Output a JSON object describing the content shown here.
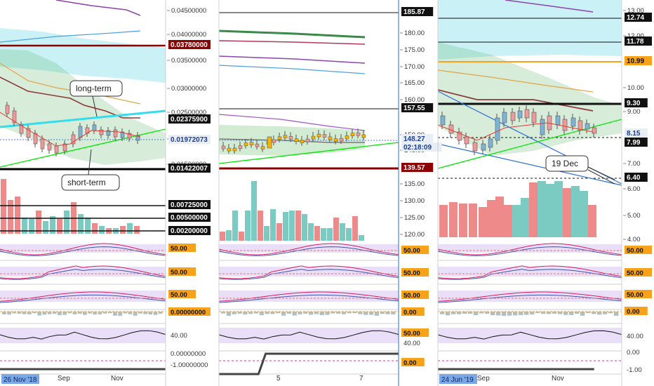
{
  "colors": {
    "cloud_green": "#4caf50",
    "cloud_cyan": "#26c6da",
    "price_up": "#7fb3d5",
    "price_down": "#ef9a9a",
    "trend_green": "#00e600",
    "trend_cyan": "#33ddee",
    "level_dark_red": "#8b0000",
    "level_black": "#000000",
    "tag_orange": "#f7a21b",
    "tag_date": "#7aa7e6",
    "vol_red": "#ef8a8a",
    "vol_teal": "#7ccbc2",
    "osc_band": "#e6d9f7"
  },
  "chart_data": [
    {
      "panel": "left",
      "type": "candlestick",
      "y_tick_labels": [
        "0.04500000",
        "0.04000000",
        "0.03500000",
        "0.03000000",
        "0.02500000",
        "0.02000000",
        "0.01500000"
      ],
      "level_tags": [
        {
          "label": "0.03780000",
          "style": "dark-red"
        },
        {
          "label": "0.02375900",
          "style": "black"
        },
        {
          "label": "0.01972073",
          "style": "price"
        },
        {
          "label": "0.01422007",
          "style": "black"
        },
        {
          "label": "0.00725000",
          "style": "black"
        },
        {
          "label": "0.00500000",
          "style": "black"
        },
        {
          "label": "0.00200000",
          "style": "black"
        }
      ],
      "osc_tags": [
        "50.00",
        "50.00",
        "50.00",
        "0.00000000",
        "40.00",
        "0.00000000",
        "-1.00000000"
      ],
      "annotations": [
        "long-term",
        "short-term"
      ],
      "x_labels": [
        "Sep",
        "Nov"
      ],
      "date_tag": "26 Nov '18"
    },
    {
      "panel": "middle",
      "type": "candlestick",
      "y_tick_labels": [
        "180.00",
        "175.00",
        "170.00",
        "165.00",
        "160.00",
        "150.00",
        "145.00",
        "135.00",
        "130.00",
        "125.00",
        "120.00"
      ],
      "level_tags": [
        {
          "label": "185.87",
          "style": "black"
        },
        {
          "label": "157.55",
          "style": "black"
        },
        {
          "label": "148.27",
          "style": "price"
        },
        {
          "label": "02:18:09",
          "style": "price"
        },
        {
          "label": "139.57",
          "style": "dark-red"
        }
      ],
      "osc_tags": [
        "50.00",
        "50.00",
        "50.00",
        "0.00",
        "50.00",
        "40.00",
        "0.00"
      ],
      "x_labels": [
        "5",
        "7"
      ]
    },
    {
      "panel": "right",
      "type": "candlestick",
      "y_tick_labels": [
        "13.00",
        "12.00",
        "10.00",
        "9.00",
        "7.00",
        "6.00",
        "5.00",
        "4.00"
      ],
      "level_tags": [
        {
          "label": "12.74",
          "style": "black"
        },
        {
          "label": "11.78",
          "style": "black"
        },
        {
          "label": "10.99",
          "style": "orange"
        },
        {
          "label": "9.30",
          "style": "black"
        },
        {
          "label": "8.15",
          "style": "price"
        },
        {
          "label": "7.99",
          "style": "black"
        },
        {
          "label": "6.40",
          "style": "black"
        }
      ],
      "osc_tags": [
        "50.00",
        "50.00",
        "50.00",
        "0.00",
        "40.00",
        "0.00",
        "-1.00"
      ],
      "annotations": [
        "19 Dec"
      ],
      "x_labels": [
        "Sep",
        "Nov"
      ],
      "date_tag": "24 Jun '19"
    }
  ]
}
